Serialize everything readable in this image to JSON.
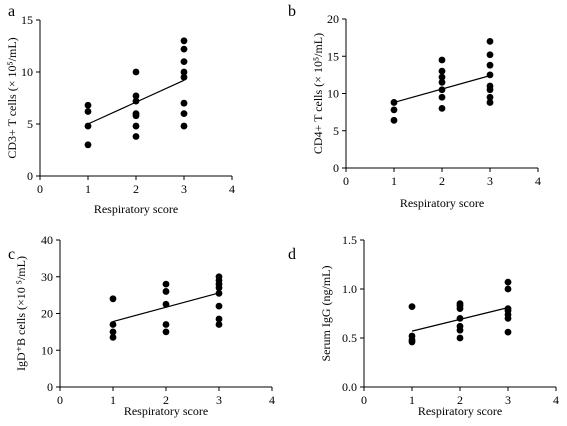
{
  "chart_data": [
    {
      "letter": "a",
      "type": "scatter",
      "xlabel": "Respiratory score",
      "ylabel": "CD3+ T cells (× 10⁵/mL)",
      "xlim": [
        0,
        4
      ],
      "ylim": [
        0,
        15
      ],
      "xticks": [
        0,
        1,
        2,
        3,
        4
      ],
      "yticks": [
        0,
        5,
        10,
        15
      ],
      "tick_labels_y": [
        "0",
        "5",
        "10",
        "15"
      ],
      "tick_labels_x": [
        "0",
        "1",
        "2",
        "3",
        "4"
      ],
      "points": [
        {
          "x": 1,
          "y": 6.8
        },
        {
          "x": 1,
          "y": 6.2
        },
        {
          "x": 1,
          "y": 4.8
        },
        {
          "x": 1,
          "y": 3.0
        },
        {
          "x": 2,
          "y": 10.0
        },
        {
          "x": 2,
          "y": 7.7
        },
        {
          "x": 2,
          "y": 7.2
        },
        {
          "x": 2,
          "y": 6.0
        },
        {
          "x": 2,
          "y": 5.8
        },
        {
          "x": 2,
          "y": 4.8
        },
        {
          "x": 2,
          "y": 3.8
        },
        {
          "x": 3,
          "y": 13.0
        },
        {
          "x": 3,
          "y": 12.2
        },
        {
          "x": 3,
          "y": 11.0
        },
        {
          "x": 3,
          "y": 10.0
        },
        {
          "x": 3,
          "y": 9.5
        },
        {
          "x": 3,
          "y": 7.0
        },
        {
          "x": 3,
          "y": 6.0
        },
        {
          "x": 3,
          "y": 4.8
        }
      ],
      "trendline": {
        "x": [
          1,
          3
        ],
        "y": [
          5.0,
          9.2
        ]
      }
    },
    {
      "letter": "b",
      "type": "scatter",
      "xlabel": "Respiratory score",
      "ylabel": "CD4+ T cells (× 10⁵/mL)",
      "xlim": [
        0,
        4
      ],
      "ylim": [
        0,
        20
      ],
      "xticks": [
        0,
        1,
        2,
        3,
        4
      ],
      "yticks": [
        0,
        5,
        10,
        15,
        20
      ],
      "tick_labels_y": [
        "0",
        "5",
        "10",
        "15",
        "20"
      ],
      "tick_labels_x": [
        "0",
        "1",
        "2",
        "3",
        "4"
      ],
      "points": [
        {
          "x": 1,
          "y": 8.8
        },
        {
          "x": 1,
          "y": 7.8
        },
        {
          "x": 1,
          "y": 6.4
        },
        {
          "x": 2,
          "y": 14.5
        },
        {
          "x": 2,
          "y": 13.0
        },
        {
          "x": 2,
          "y": 12.2
        },
        {
          "x": 2,
          "y": 11.5
        },
        {
          "x": 2,
          "y": 10.5
        },
        {
          "x": 2,
          "y": 9.5
        },
        {
          "x": 2,
          "y": 8.0
        },
        {
          "x": 3,
          "y": 17.0
        },
        {
          "x": 3,
          "y": 15.2
        },
        {
          "x": 3,
          "y": 13.8
        },
        {
          "x": 3,
          "y": 12.5
        },
        {
          "x": 3,
          "y": 11.0
        },
        {
          "x": 3,
          "y": 10.5
        },
        {
          "x": 3,
          "y": 9.5
        },
        {
          "x": 3,
          "y": 8.8
        }
      ],
      "trendline": {
        "x": [
          1,
          3
        ],
        "y": [
          8.8,
          12.4
        ]
      }
    },
    {
      "letter": "c",
      "type": "scatter",
      "xlabel": "Respiratory score",
      "ylabel": "IgD⁺B cells (×10 ⁵/mL)",
      "xlim": [
        0,
        4
      ],
      "ylim": [
        0,
        40
      ],
      "xticks": [
        0,
        1,
        2,
        3,
        4
      ],
      "yticks": [
        0,
        10,
        20,
        30,
        40
      ],
      "tick_labels_y": [
        "0",
        "10",
        "20",
        "30",
        "40"
      ],
      "tick_labels_x": [
        "0",
        "1",
        "2",
        "3",
        "4"
      ],
      "points": [
        {
          "x": 1,
          "y": 24.0
        },
        {
          "x": 1,
          "y": 17.0
        },
        {
          "x": 1,
          "y": 15.0
        },
        {
          "x": 1,
          "y": 13.5
        },
        {
          "x": 2,
          "y": 28.0
        },
        {
          "x": 2,
          "y": 26.0
        },
        {
          "x": 2,
          "y": 22.5
        },
        {
          "x": 2,
          "y": 17.0
        },
        {
          "x": 2,
          "y": 15.0
        },
        {
          "x": 3,
          "y": 30.0
        },
        {
          "x": 3,
          "y": 29.0
        },
        {
          "x": 3,
          "y": 28.0
        },
        {
          "x": 3,
          "y": 27.0
        },
        {
          "x": 3,
          "y": 25.5
        },
        {
          "x": 3,
          "y": 22.0
        },
        {
          "x": 3,
          "y": 18.5
        },
        {
          "x": 3,
          "y": 17.0
        }
      ],
      "trendline": {
        "x": [
          1,
          3
        ],
        "y": [
          17.8,
          25.6
        ]
      }
    },
    {
      "letter": "d",
      "type": "scatter",
      "xlabel": "Respiratory score",
      "ylabel": "Serum IgG (ng/mL)",
      "xlim": [
        0,
        4
      ],
      "ylim": [
        0,
        1.5
      ],
      "xticks": [
        0,
        1,
        2,
        3,
        4
      ],
      "yticks": [
        0,
        0.5,
        1.0,
        1.5
      ],
      "tick_labels_y": [
        "0.0",
        "0.5",
        "1.0",
        "1.5"
      ],
      "tick_labels_x": [
        "0",
        "1",
        "2",
        "3",
        "4"
      ],
      "points": [
        {
          "x": 1,
          "y": 0.82
        },
        {
          "x": 1,
          "y": 0.52
        },
        {
          "x": 1,
          "y": 0.48
        },
        {
          "x": 1,
          "y": 0.46
        },
        {
          "x": 2,
          "y": 0.85
        },
        {
          "x": 2,
          "y": 0.83
        },
        {
          "x": 2,
          "y": 0.8
        },
        {
          "x": 2,
          "y": 0.7
        },
        {
          "x": 2,
          "y": 0.62
        },
        {
          "x": 2,
          "y": 0.58
        },
        {
          "x": 2,
          "y": 0.5
        },
        {
          "x": 3,
          "y": 1.07
        },
        {
          "x": 3,
          "y": 1.0
        },
        {
          "x": 3,
          "y": 0.8
        },
        {
          "x": 3,
          "y": 0.78
        },
        {
          "x": 3,
          "y": 0.74
        },
        {
          "x": 3,
          "y": 0.7
        },
        {
          "x": 3,
          "y": 0.56
        }
      ],
      "trendline": {
        "x": [
          1,
          3
        ],
        "y": [
          0.57,
          0.81
        ]
      }
    }
  ]
}
